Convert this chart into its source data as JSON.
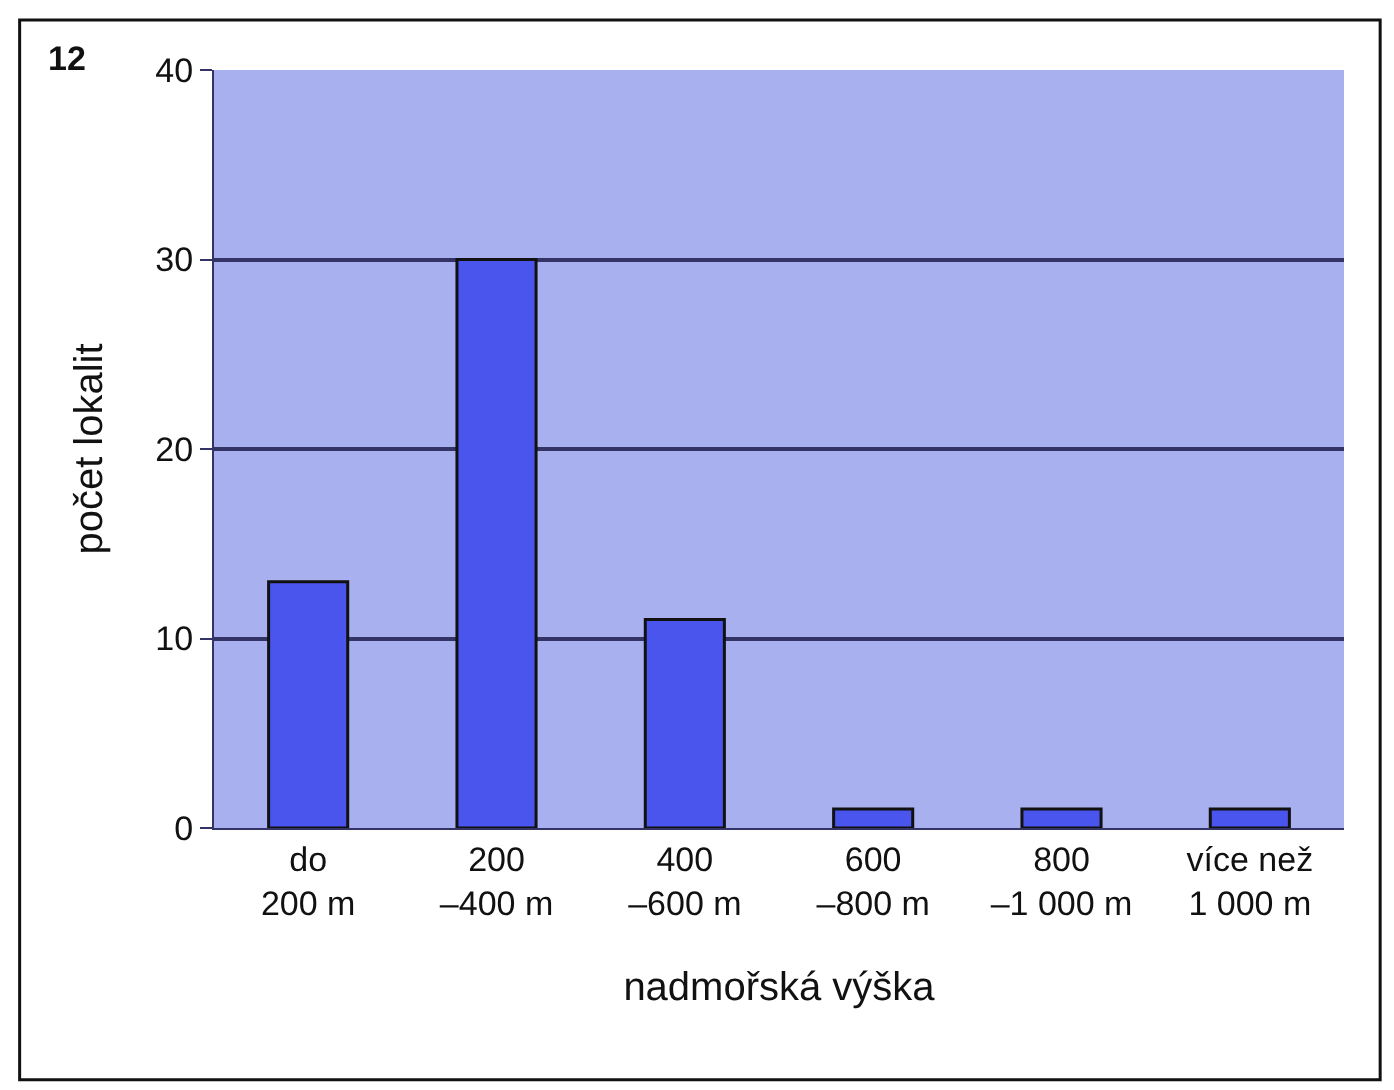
{
  "chart_data": {
    "type": "bar",
    "title": "12",
    "categories": [
      "do\n200 m",
      "200\n–400 m",
      "400\n–600 m",
      "600\n–800 m",
      "800\n–1 000 m",
      "více než\n1 000 m"
    ],
    "values": [
      13,
      30,
      11,
      1,
      1,
      1
    ],
    "color": "#4a55ee",
    "xlabel": "nadmořská výška",
    "ylabel": "počet lokalit",
    "ylim": [
      0,
      40
    ],
    "yticks": [
      0,
      10,
      20,
      30,
      40
    ],
    "grid": "y"
  }
}
